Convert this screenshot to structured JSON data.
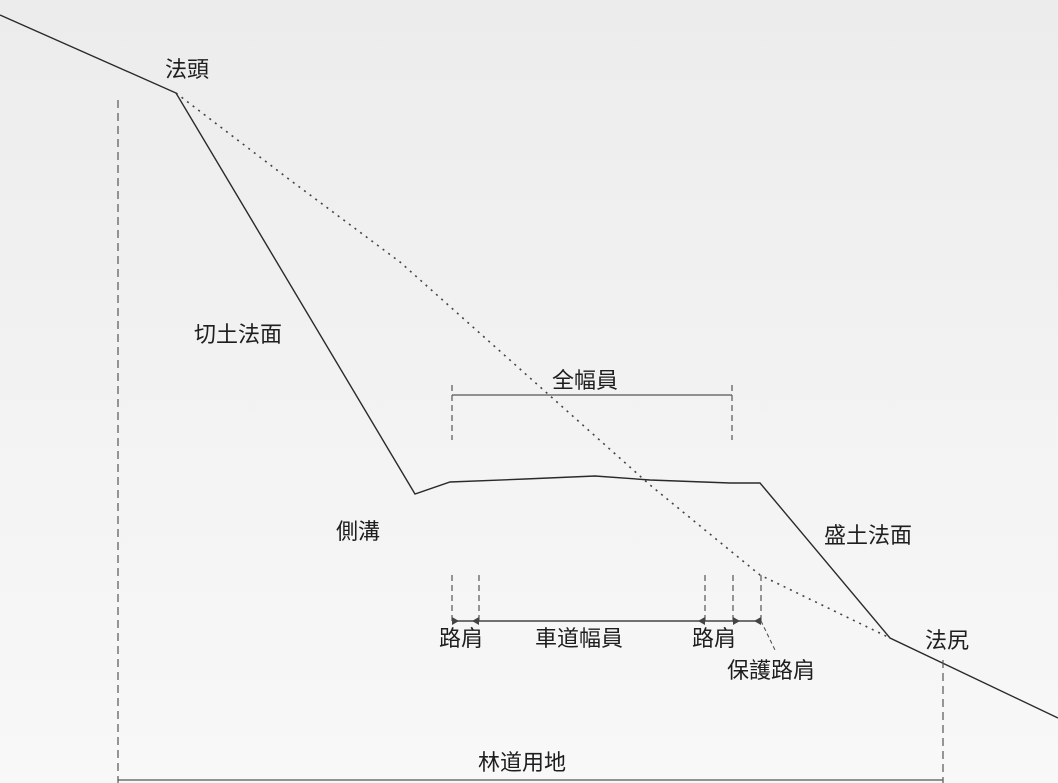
{
  "labels": {
    "slope_top": "法頭",
    "cut_slope": "切土法面",
    "full_width": "全幅員",
    "side_ditch": "側溝",
    "fill_slope": "盛土法面",
    "shoulder_left": "路肩",
    "roadway_width": "車道幅員",
    "shoulder_right": "路肩",
    "slope_toe": "法尻",
    "protective_shoulder": "保護路肩",
    "forest_road_land": "林道用地"
  },
  "colors": {
    "line": "#2a2a2a",
    "dashed": "#555555",
    "text": "#1e1e1e"
  }
}
